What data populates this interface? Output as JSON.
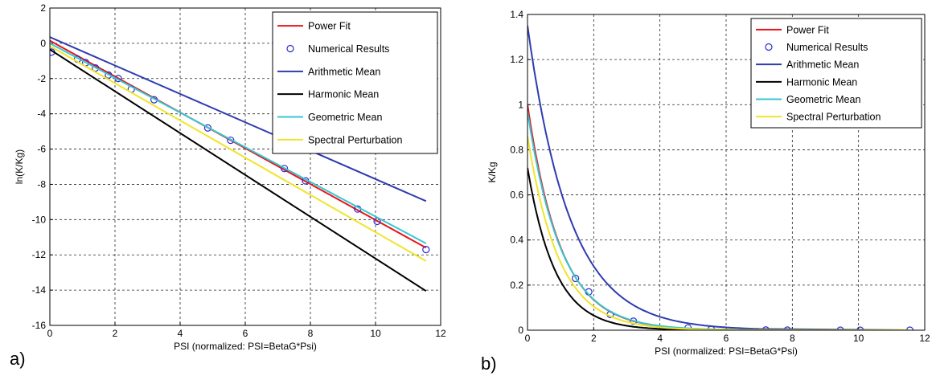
{
  "chart_data": [
    {
      "type": "line",
      "panel_label": "a)",
      "xlabel": "PSI (normalized: PSI=BetaG*Psi)",
      "ylabel": "ln(K/Kg)",
      "xlim": [
        0,
        12
      ],
      "ylim": [
        -16,
        2
      ],
      "xticks": [
        0,
        2,
        4,
        6,
        8,
        10,
        12
      ],
      "yticks": [
        -16,
        -14,
        -12,
        -10,
        -8,
        -6,
        -4,
        -2,
        0,
        2
      ],
      "grid": true,
      "legend_position": "top-right",
      "series": [
        {
          "name": "Power Fit",
          "color": "#e8151b",
          "style": "line",
          "x": [
            0,
            11.55
          ],
          "y": [
            0.15,
            -11.6
          ]
        },
        {
          "name": "Numerical Results",
          "color": "#2b2bd0",
          "style": "marker",
          "x": [
            0.05,
            0.85,
            1.1,
            1.4,
            1.8,
            2.1,
            2.5,
            3.2,
            4.85,
            5.55,
            7.2,
            7.85,
            9.45,
            10.05,
            11.55
          ],
          "y": [
            -0.5,
            -0.9,
            -1.1,
            -1.4,
            -1.8,
            -2.0,
            -2.6,
            -3.2,
            -4.8,
            -5.5,
            -7.1,
            -7.8,
            -9.4,
            -10.1,
            -11.7
          ]
        },
        {
          "name": "Arithmetic Mean",
          "color": "#2e3cae",
          "style": "line",
          "x": [
            0,
            11.55
          ],
          "y": [
            0.35,
            -8.95
          ]
        },
        {
          "name": "Harmonic Mean",
          "color": "#000000",
          "style": "line",
          "x": [
            0,
            11.55
          ],
          "y": [
            -0.35,
            -14.05
          ]
        },
        {
          "name": "Geometric Mean",
          "color": "#36c7d2",
          "style": "line",
          "x": [
            0,
            11.55
          ],
          "y": [
            0.0,
            -11.35
          ]
        },
        {
          "name": "Spectral Perturbation",
          "color": "#f0e42a",
          "style": "line",
          "x": [
            0,
            11.55
          ],
          "y": [
            -0.15,
            -12.35
          ]
        }
      ]
    },
    {
      "type": "line",
      "panel_label": "b)",
      "xlabel": "PSI (normalized: PSI=BetaG*Psi)",
      "ylabel": "K/Kg",
      "xlim": [
        0,
        12
      ],
      "ylim": [
        0,
        1.4
      ],
      "xticks": [
        0,
        2,
        4,
        6,
        8,
        10,
        12
      ],
      "yticks": [
        0,
        0.2,
        0.4,
        0.6,
        0.8,
        1,
        1.2,
        1.4
      ],
      "grid": true,
      "legend_position": "top-right",
      "series": [
        {
          "name": "Power Fit",
          "color": "#e8151b",
          "style": "line",
          "a": 1.0,
          "k": 1.0
        },
        {
          "name": "Numerical Results",
          "color": "#2b2bd0",
          "style": "marker",
          "x": [
            1.45,
            1.85,
            2.5,
            3.2,
            4.85,
            5.55,
            7.2,
            7.85,
            9.45,
            10.05,
            11.55
          ],
          "y": [
            0.23,
            0.17,
            0.07,
            0.04,
            0.01,
            0.004,
            0.001,
            0.0005,
            0.0001,
            0.0,
            0.0
          ]
        },
        {
          "name": "Arithmetic Mean",
          "color": "#2e3cae",
          "style": "line",
          "a": 1.35,
          "k": 0.78
        },
        {
          "name": "Harmonic Mean",
          "color": "#000000",
          "style": "line",
          "a": 0.72,
          "k": 1.2
        },
        {
          "name": "Geometric Mean",
          "color": "#36c7d2",
          "style": "line",
          "a": 0.97,
          "k": 0.98
        },
        {
          "name": "Spectral Perturbation",
          "color": "#f0e42a",
          "style": "line",
          "a": 0.86,
          "k": 1.05
        }
      ]
    }
  ]
}
